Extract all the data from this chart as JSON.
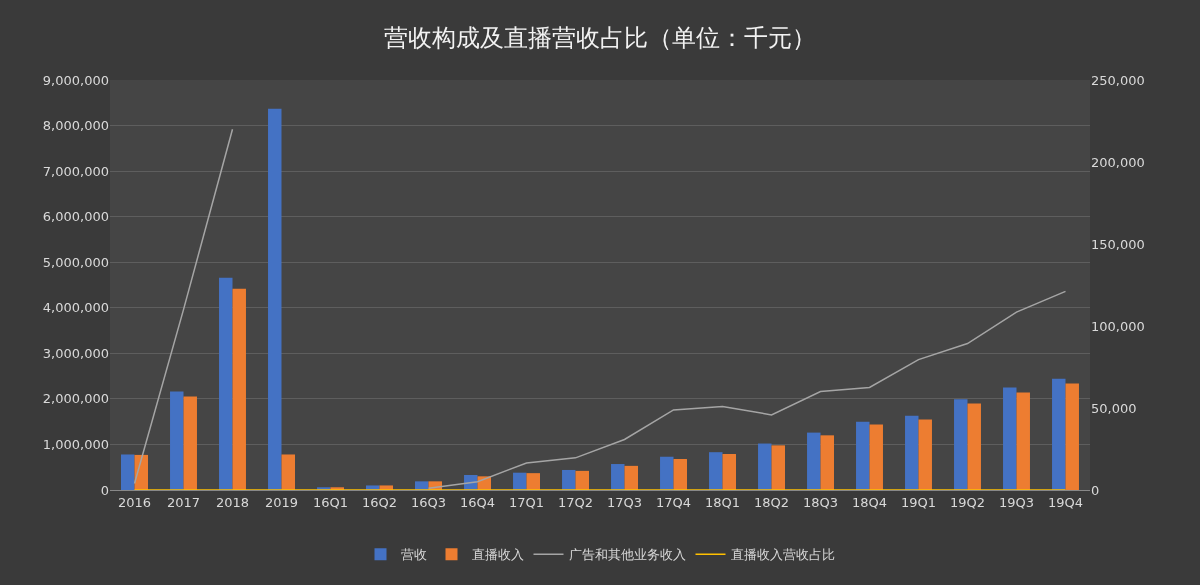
{
  "chart_data": {
    "type": "bar",
    "title": "营收构成及直播营收占比（单位：千元）",
    "categories": [
      "2016",
      "2017",
      "2018",
      "2019",
      "16Q1",
      "16Q2",
      "16Q3",
      "16Q4",
      "17Q1",
      "17Q2",
      "17Q3",
      "17Q4",
      "18Q1",
      "18Q2",
      "18Q3",
      "18Q4",
      "19Q1",
      "19Q2",
      "19Q3",
      "19Q4"
    ],
    "series": [
      {
        "name": "营收",
        "color": "#4472c4",
        "values": [
          780000,
          2160000,
          4660000,
          8370000,
          60000,
          100000,
          190000,
          330000,
          380000,
          440000,
          570000,
          730000,
          830000,
          1020000,
          1260000,
          1500000,
          1630000,
          1990000,
          2250000,
          2440000
        ]
      },
      {
        "name": "直播收入",
        "color": "#ed7d31",
        "values": [
          770000,
          2050000,
          4420000,
          780000,
          60000,
          100000,
          190000,
          300000,
          370000,
          420000,
          530000,
          680000,
          790000,
          980000,
          1200000,
          1440000,
          1550000,
          1900000,
          2140000,
          2340000
        ]
      },
      {
        "name": "广告和其他业务收入",
        "type": "line",
        "axis": "y2",
        "color": "#a5a5a5",
        "values": [
          4000,
          110000,
          220000,
          null,
          null,
          null,
          1000,
          5000,
          16500,
          19600,
          30800,
          48800,
          50900,
          45800,
          60000,
          62500,
          79500,
          89300,
          108500,
          121100
        ]
      },
      {
        "name": "直播收入营收占比",
        "type": "line",
        "axis": "y2",
        "color": "#ffc000",
        "values": [
          0,
          0,
          0,
          0,
          0,
          0,
          0,
          0,
          0,
          0,
          0,
          0,
          0,
          0,
          0,
          0,
          0,
          0,
          0,
          0
        ]
      }
    ],
    "ylim": [
      0,
      9000000
    ],
    "yticks": [
      {
        "value": 0,
        "label": "0"
      },
      {
        "value": 1000000,
        "label": "1,000,000"
      },
      {
        "value": 2000000,
        "label": "2,000,000"
      },
      {
        "value": 3000000,
        "label": "3,000,000"
      },
      {
        "value": 4000000,
        "label": "4,000,000"
      },
      {
        "value": 5000000,
        "label": "5,000,000"
      },
      {
        "value": 6000000,
        "label": "6,000,000"
      },
      {
        "value": 7000000,
        "label": "7,000,000"
      },
      {
        "value": 8000000,
        "label": "8,000,000"
      },
      {
        "value": 9000000,
        "label": "9,000,000"
      }
    ],
    "y2lim": [
      0,
      250000
    ],
    "y2ticks": [
      {
        "value": 0,
        "label": "0"
      },
      {
        "value": 50000,
        "label": "50,000"
      },
      {
        "value": 100000,
        "label": "100,000"
      },
      {
        "value": 150000,
        "label": "150,000"
      },
      {
        "value": 200000,
        "label": "200,000"
      },
      {
        "value": 250000,
        "label": "250,000"
      }
    ],
    "grid": "y",
    "legend": "bottom",
    "marker": "none"
  }
}
